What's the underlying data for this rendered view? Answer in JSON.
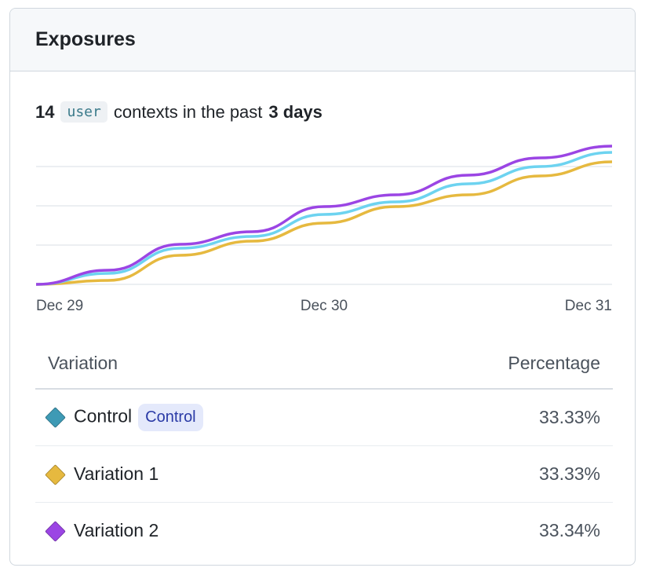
{
  "header": {
    "title": "Exposures"
  },
  "summary": {
    "count": "14",
    "context_type": "user",
    "middle": "contexts in the past",
    "period": "3 days"
  },
  "chart_data": {
    "type": "line",
    "x": [
      "Dec 29 00:00",
      "Dec 29 06:00",
      "Dec 29 12:00",
      "Dec 29 18:00",
      "Dec 30 00:00",
      "Dec 30 06:00",
      "Dec 30 12:00",
      "Dec 30 18:00",
      "Dec 31 00:00"
    ],
    "xticks": [
      "Dec 29",
      "Dec 30",
      "Dec 31"
    ],
    "ylim": [
      0,
      3.6
    ],
    "grid": true,
    "series": [
      {
        "color": "#e6b93f",
        "values": [
          0,
          0.1,
          0.74,
          1.1,
          1.56,
          1.98,
          2.28,
          2.76,
          3.12
        ]
      },
      {
        "color": "#6dd3f0",
        "values": [
          0,
          0.28,
          0.92,
          1.22,
          1.78,
          2.1,
          2.56,
          3.0,
          3.36
        ]
      },
      {
        "color": "#9b45e4",
        "values": [
          0,
          0.36,
          1.02,
          1.34,
          1.98,
          2.28,
          2.78,
          3.22,
          3.52
        ]
      }
    ]
  },
  "table": {
    "headers": [
      "Variation",
      "Percentage"
    ],
    "rows": [
      {
        "name": "Control",
        "badge": "Control",
        "percentage": "33.33%",
        "color": "#3e9ab5"
      },
      {
        "name": "Variation 1",
        "badge": null,
        "percentage": "33.33%",
        "color": "#e6b93f"
      },
      {
        "name": "Variation 2",
        "badge": null,
        "percentage": "33.34%",
        "color": "#9b45e4"
      }
    ]
  }
}
